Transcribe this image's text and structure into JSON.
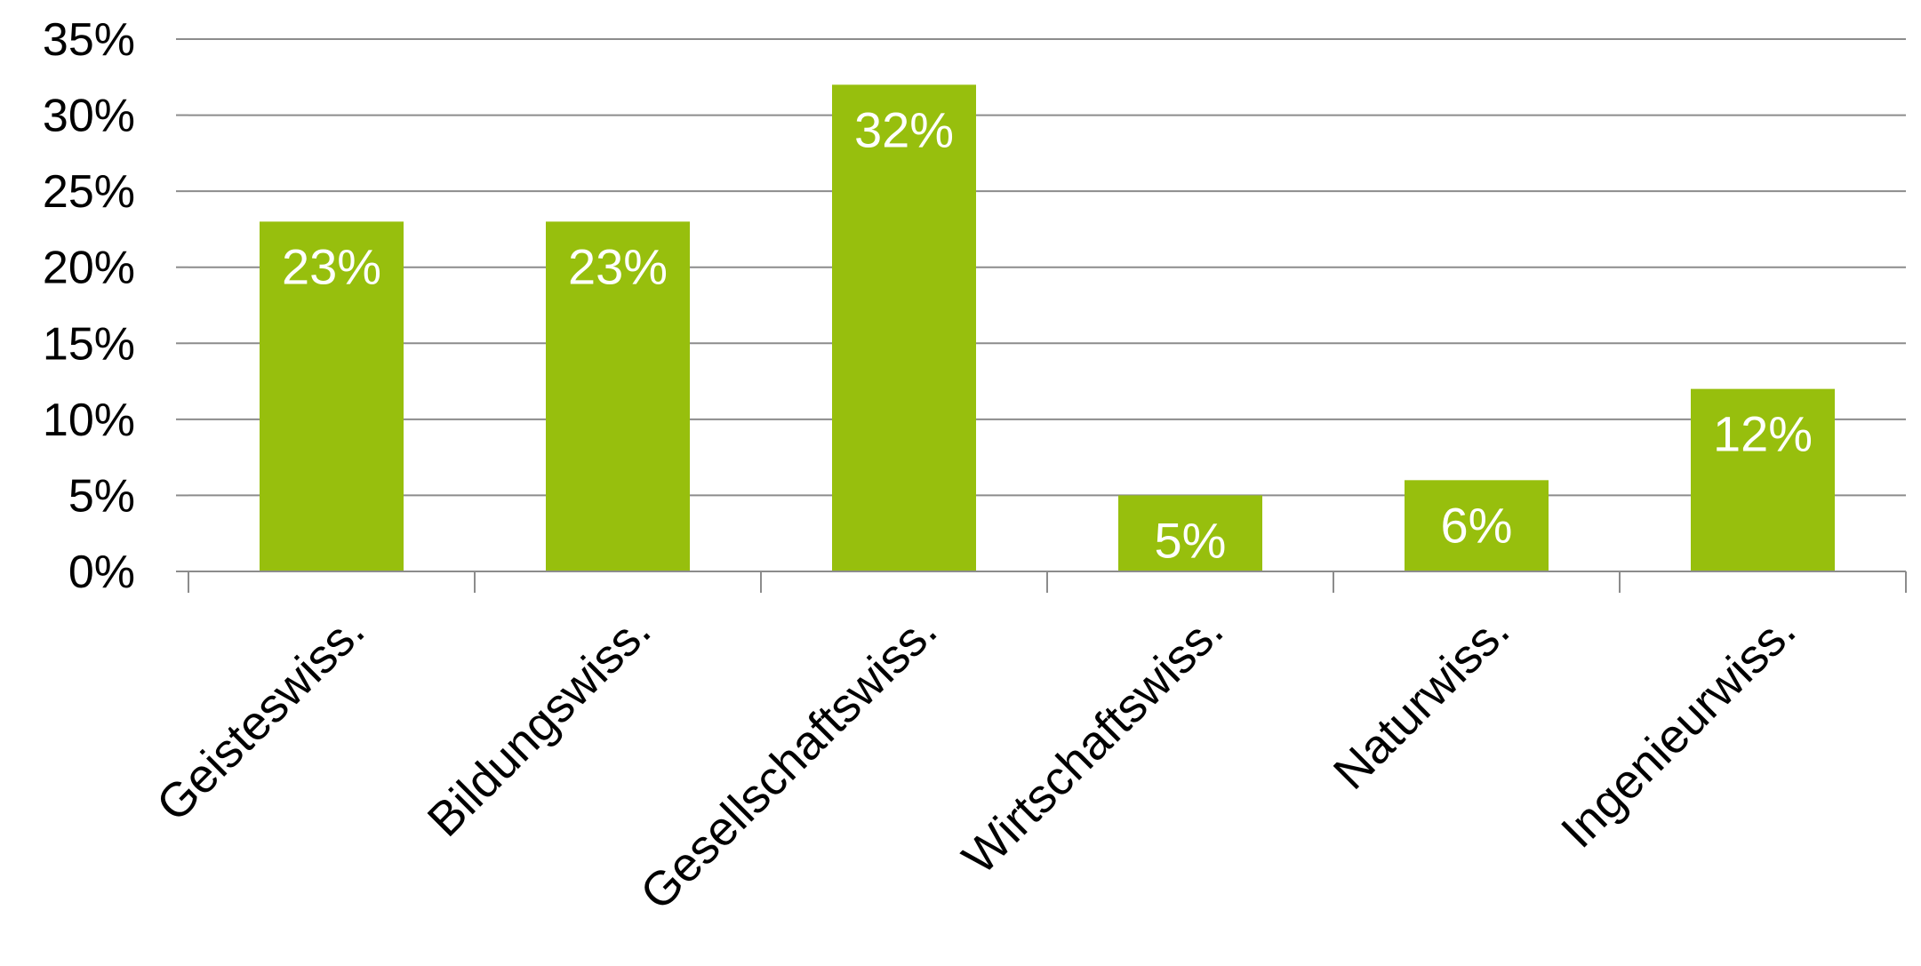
{
  "chart_data": {
    "type": "bar",
    "title": "",
    "xlabel": "",
    "ylabel": "",
    "categories": [
      "Geisteswiss.",
      "Bildungswiss.",
      "Gesellschaftswiss.",
      "Wirtschaftswiss.",
      "Naturwiss.",
      "Ingenieurwiss."
    ],
    "values": [
      23,
      23,
      32,
      5,
      6,
      12
    ],
    "value_labels": [
      "23%",
      "23%",
      "32%",
      "5%",
      "6%",
      "12%"
    ],
    "ylim": [
      0,
      35
    ],
    "yticks": [
      0,
      5,
      10,
      15,
      20,
      25,
      30,
      35
    ],
    "ytick_labels": [
      "0%",
      "5%",
      "10%",
      "15%",
      "20%",
      "25%",
      "30%",
      "35%"
    ],
    "grid": true,
    "legend": "none",
    "bar_color": "#97bf0d",
    "data_label_color": "#ffffff",
    "gridline_color": "#8c8c8c",
    "text_color": "#000000"
  }
}
